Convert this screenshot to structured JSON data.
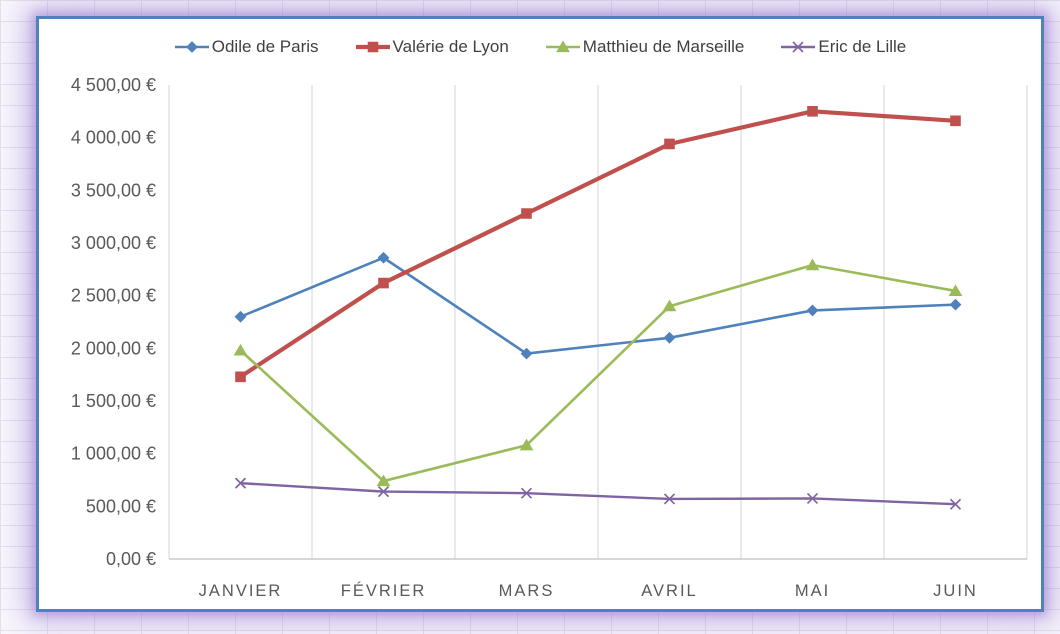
{
  "chart_data": {
    "type": "line",
    "title": "",
    "categories": [
      "JANVIER",
      "FÉVRIER",
      "MARS",
      "AVRIL",
      "MAI",
      "JUIN"
    ],
    "series": [
      {
        "name": "Odile de Paris",
        "color": "#4F81BD",
        "marker": "diamond",
        "line_width": 2.6,
        "values": [
          2300,
          2860,
          1950,
          2100,
          2360,
          2415
        ]
      },
      {
        "name": "Valérie de Lyon",
        "color": "#C0504D",
        "marker": "square",
        "line_width": 4.2,
        "values": [
          1730,
          2620,
          3280,
          3940,
          4250,
          4160
        ]
      },
      {
        "name": "Matthieu de Marseille",
        "color": "#9BBB59",
        "marker": "triangle",
        "line_width": 2.6,
        "values": [
          1980,
          740,
          1080,
          2400,
          2790,
          2545
        ]
      },
      {
        "name": "Eric de Lille",
        "color": "#8064A2",
        "marker": "x",
        "line_width": 2.4,
        "values": [
          720,
          640,
          625,
          570,
          575,
          520
        ]
      }
    ],
    "ylim": [
      0,
      4500
    ],
    "y_tick_step": 500,
    "y_ticks": [
      "4 500,00 €",
      "4 000,00 €",
      "3 500,00 €",
      "3 000,00 €",
      "2 500,00 €",
      "2 000,00 €",
      "1 500,00 €",
      "1 000,00 €",
      "500,00 €",
      "0,00 €"
    ],
    "grid": "vertical-category-boundaries-only",
    "legend_position": "top"
  },
  "frame": {
    "border_color": "#4E81BD",
    "glow_color": "#9E82D4",
    "gridline_color": "#D6D6D6",
    "axis_line_color": "#BFBFBF",
    "axis_text_color": "#595959",
    "legend_text_color": "#3F3F3F",
    "background": "#FFFFFF"
  }
}
